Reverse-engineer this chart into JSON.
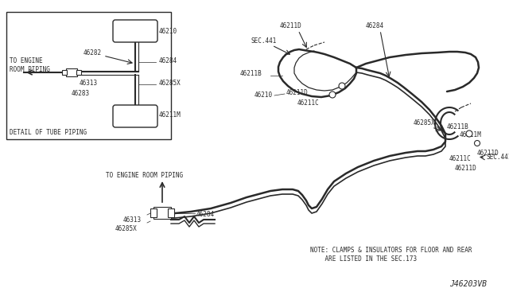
{
  "bg_color": "#ffffff",
  "line_color": "#2a2a2a",
  "label_color": "#000000",
  "diagram_id": "J46203VB",
  "note_line1": "NOTE: CLAMPS & INSULATORS FOR FLOOR AND REAR",
  "note_line2": "    ARE LISTED IN THE SEC.173",
  "detail_box_label": "DETAIL OF TUBE PIPING",
  "font_size": 5.5
}
